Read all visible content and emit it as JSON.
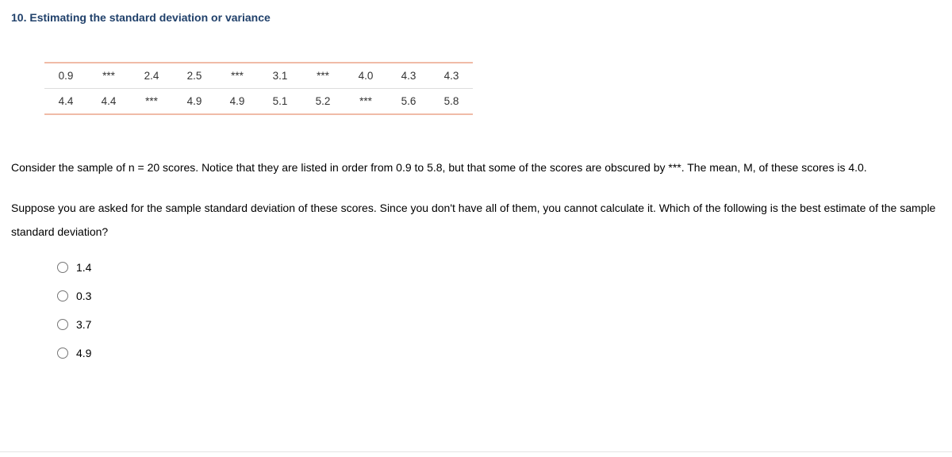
{
  "heading": "10. Estimating the standard deviation or variance",
  "table": {
    "rows": [
      [
        "0.9",
        "***",
        "2.4",
        "2.5",
        "***",
        "3.1",
        "***",
        "4.0",
        "4.3",
        "4.3"
      ],
      [
        "4.4",
        "4.4",
        "***",
        "4.9",
        "4.9",
        "5.1",
        "5.2",
        "***",
        "5.6",
        "5.8"
      ]
    ]
  },
  "paragraph1": "Consider the sample of n = 20 scores. Notice that they are listed in order from 0.9 to 5.8, but that some of the scores are obscured by ***. The mean, M, of these scores is 4.0.",
  "paragraph2": "Suppose you are asked for the sample standard deviation of these scores. Since you don't have all of them, you cannot calculate it. Which of the following is the best estimate of the sample standard deviation?",
  "options": [
    "1.4",
    "0.3",
    "3.7",
    "4.9"
  ],
  "colors": {
    "heading": "#21416b",
    "table_border_accent": "#f0bba7",
    "table_border_inner": "#dddddd",
    "text": "#000000",
    "cell_text": "#333333",
    "background": "#ffffff",
    "bottom_rule": "#e4e4e4"
  }
}
